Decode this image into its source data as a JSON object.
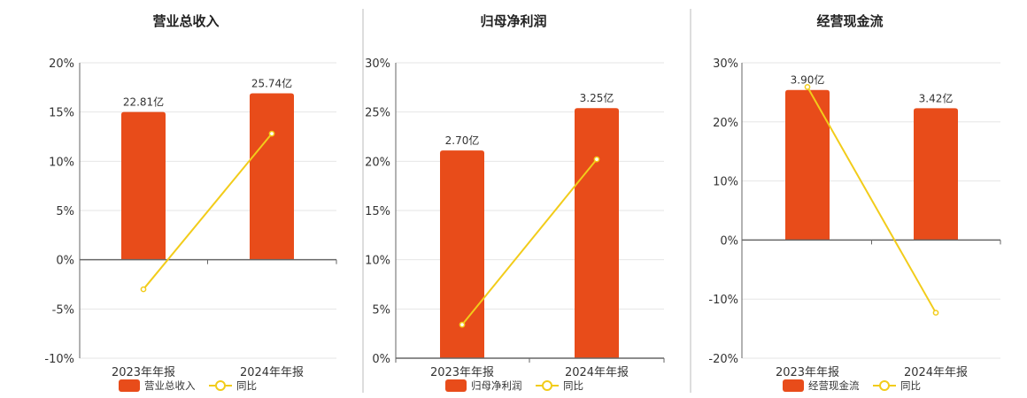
{
  "colors": {
    "bar": "#e84c1a",
    "line": "#f2cc1a",
    "grid": "#e6e6e6",
    "axis": "#666666",
    "divider": "#bbbbbb"
  },
  "chart_data": [
    {
      "type": "bar",
      "title": "营业总收入",
      "categories": [
        "2023年年报",
        "2024年年报"
      ],
      "series": [
        {
          "name": "营业总收入",
          "type": "bar",
          "values": [
            15.0,
            16.9
          ],
          "labels": [
            "22.81亿",
            "25.74亿"
          ]
        },
        {
          "name": "同比",
          "type": "line",
          "values": [
            -3.0,
            12.8
          ]
        }
      ],
      "ylim": [
        -10,
        20
      ],
      "yticks": [
        -10,
        -5,
        0,
        5,
        10,
        15,
        20
      ],
      "ytick_labels": [
        "-10%",
        "-5%",
        "0%",
        "5%",
        "10%",
        "15%",
        "20%"
      ],
      "grid": true,
      "legend": "bottom"
    },
    {
      "type": "bar",
      "title": "归母净利润",
      "categories": [
        "2023年年报",
        "2024年年报"
      ],
      "series": [
        {
          "name": "归母净利润",
          "type": "bar",
          "values": [
            21.1,
            25.4
          ],
          "labels": [
            "2.70亿",
            "3.25亿"
          ]
        },
        {
          "name": "同比",
          "type": "line",
          "values": [
            3.4,
            20.2
          ]
        }
      ],
      "ylim": [
        0,
        30
      ],
      "yticks": [
        0,
        5,
        10,
        15,
        20,
        25,
        30
      ],
      "ytick_labels": [
        "0%",
        "5%",
        "10%",
        "15%",
        "20%",
        "25%",
        "30%"
      ],
      "grid": true,
      "legend": "bottom"
    },
    {
      "type": "bar",
      "title": "经营现金流",
      "categories": [
        "2023年年报",
        "2024年年报"
      ],
      "series": [
        {
          "name": "经营现金流",
          "type": "bar",
          "values": [
            25.4,
            22.3
          ],
          "labels": [
            "3.90亿",
            "3.42亿"
          ]
        },
        {
          "name": "同比",
          "type": "line",
          "values": [
            25.9,
            -12.3
          ]
        }
      ],
      "ylim": [
        -20,
        30
      ],
      "yticks": [
        -20,
        -10,
        0,
        10,
        20,
        30
      ],
      "ytick_labels": [
        "-20%",
        "-10%",
        "0%",
        "10%",
        "20%",
        "30%"
      ],
      "grid": true,
      "legend": "bottom"
    }
  ]
}
